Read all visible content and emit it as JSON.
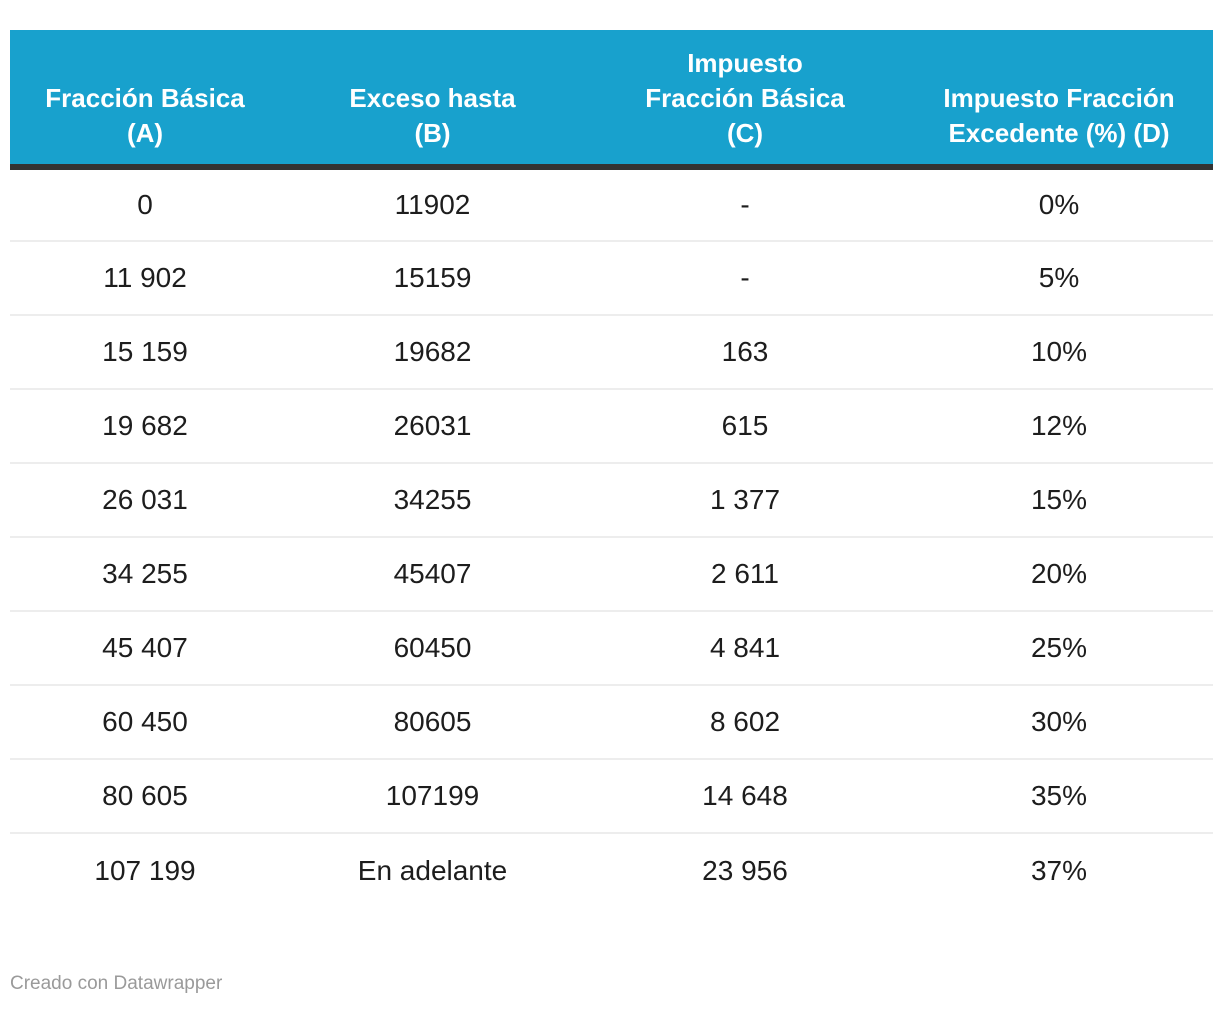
{
  "chart_data": {
    "type": "table",
    "columns": [
      {
        "id": "fraccion-basica",
        "label": "Fracción Básica (A)",
        "lines": [
          "Fracción Básica",
          "(A)"
        ]
      },
      {
        "id": "exceso-hasta",
        "label": "Exceso hasta (B)",
        "lines": [
          "Exceso hasta",
          "(B)"
        ]
      },
      {
        "id": "impuesto-fraccion-basica",
        "label": "Impuesto Fracción Básica (C)",
        "lines": [
          "Impuesto",
          "Fracción Básica",
          "(C)"
        ]
      },
      {
        "id": "impuesto-fraccion-excedente",
        "label": "Impuesto Fracción Excedente (%) (D)",
        "lines": [
          "Impuesto Fracción",
          "Excedente (%) (D)"
        ]
      }
    ],
    "rows": [
      [
        "0",
        "11902",
        "-",
        "0%"
      ],
      [
        "11 902",
        "15159",
        "-",
        "5%"
      ],
      [
        "15 159",
        "19682",
        "163",
        "10%"
      ],
      [
        "19 682",
        "26031",
        "615",
        "12%"
      ],
      [
        "26 031",
        "34255",
        "1 377",
        "15%"
      ],
      [
        "34 255",
        "45407",
        "2 611",
        "20%"
      ],
      [
        "45 407",
        "60450",
        "4 841",
        "25%"
      ],
      [
        "60 450",
        "80605",
        "8 602",
        "30%"
      ],
      [
        "80 605",
        "107199",
        "14 648",
        "35%"
      ],
      [
        "107 199",
        "En adelante",
        "23 956",
        "37%"
      ]
    ],
    "credit": "Creado con Datawrapper"
  },
  "colors": {
    "header_bg": "#18a1cd",
    "header_text": "#ffffff",
    "header_border": "#333333",
    "row_divider": "#ededed",
    "body_text": "#1d1d1d",
    "credit_text": "#9a9a9a"
  }
}
